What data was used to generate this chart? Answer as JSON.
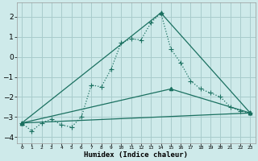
{
  "background_color": "#ceeaea",
  "grid_color": "#a8cccc",
  "line_color": "#1a7060",
  "xlabel": "Humidex (Indice chaleur)",
  "ylim": [
    -4.3,
    2.7
  ],
  "xlim": [
    -0.5,
    23.5
  ],
  "yticks": [
    -4,
    -3,
    -2,
    -1,
    0,
    1,
    2
  ],
  "xtick_labels": [
    "0",
    "1",
    "2",
    "3",
    "4",
    "5",
    "6",
    "7",
    "8",
    "9",
    "10",
    "11",
    "12",
    "13",
    "14",
    "15",
    "16",
    "17",
    "18",
    "19",
    "20",
    "21",
    "22",
    "23"
  ],
  "main_x": [
    0,
    1,
    2,
    3,
    4,
    5,
    6,
    7,
    8,
    9,
    10,
    11,
    12,
    13,
    14,
    15,
    16,
    17,
    18,
    19,
    20,
    21,
    22,
    23
  ],
  "main_y": [
    -3.3,
    -3.7,
    -3.3,
    -3.1,
    -3.4,
    -3.5,
    -3.0,
    -1.4,
    -1.5,
    -0.6,
    0.7,
    0.9,
    0.85,
    1.7,
    2.2,
    0.4,
    -0.3,
    -1.2,
    -1.6,
    -1.8,
    -2.0,
    -2.5,
    -2.7,
    -2.8
  ],
  "line1_x": [
    0,
    23
  ],
  "line1_y": [
    -3.3,
    -2.8
  ],
  "line2_x": [
    0,
    14,
    23
  ],
  "line2_y": [
    -3.3,
    2.2,
    -2.8
  ],
  "line3_x": [
    0,
    15,
    23
  ],
  "line3_y": [
    -3.3,
    -1.6,
    -2.8
  ]
}
